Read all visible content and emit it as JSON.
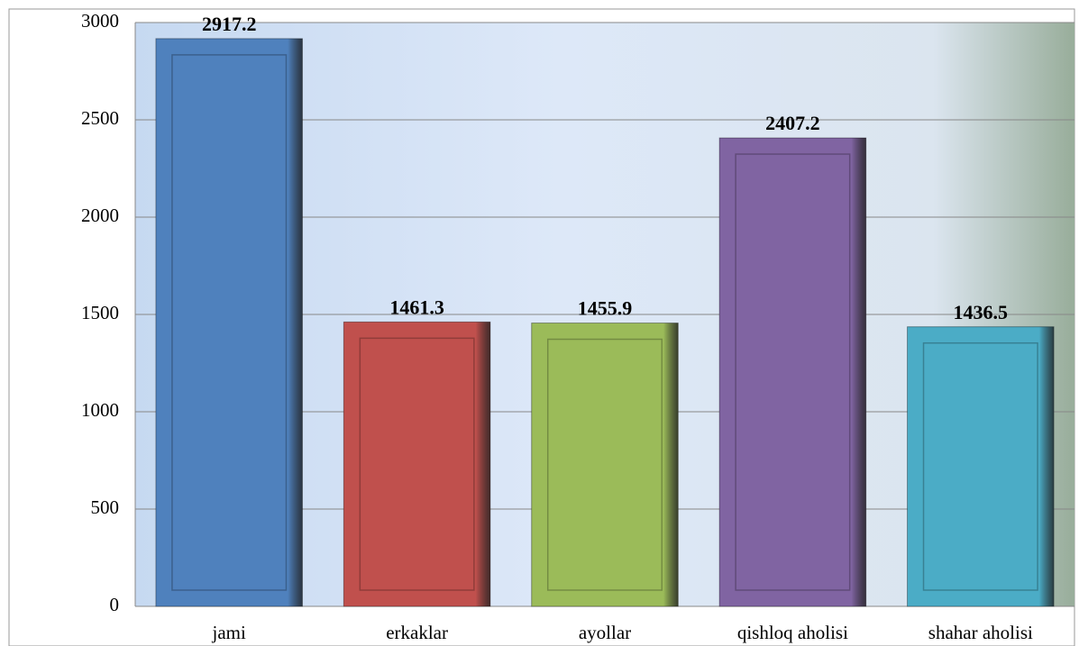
{
  "chart_data": {
    "type": "bar",
    "categories": [
      "jami",
      "erkaklar",
      "ayollar",
      "qishloq aholisi",
      "shahar aholisi"
    ],
    "values": [
      2917.2,
      1461.3,
      1455.9,
      2407.2,
      1436.5
    ],
    "colors": [
      "#4f81bd",
      "#c0504d",
      "#9bbb59",
      "#8064a2",
      "#4bacc6"
    ],
    "ylim": [
      0,
      3000
    ],
    "yticks": [
      0,
      500,
      1000,
      1500,
      2000,
      2500,
      3000
    ],
    "grid": true
  }
}
